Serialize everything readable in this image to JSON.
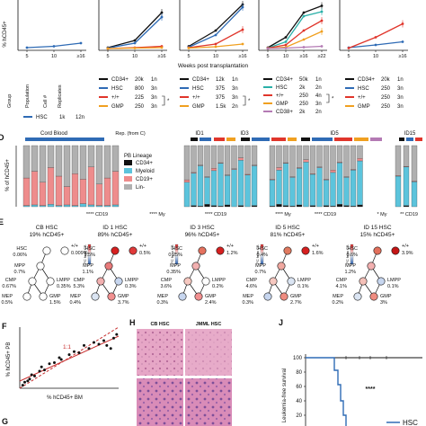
{
  "colors": {
    "black": "#111111",
    "blue": "#2f6bb5",
    "red": "#e0352b",
    "orange": "#f0a020",
    "teal": "#2ab0a8",
    "cyan": "#5cc4dc",
    "grey": "#b0b0b0",
    "pink": "#ee8c8c",
    "green": "#3aa13a",
    "mauve": "#b47ab4",
    "tree_gradient_top": "#d62020",
    "tree_gradient_mid": "#ffffff",
    "tree_gradient_bottom": "#2a5fb0"
  },
  "panel_a": {
    "ylabel": "% hCD45+",
    "xlabel": "Weeks post transplantation",
    "panels": [
      {
        "ticks": [
          "5",
          "10",
          "≥16"
        ]
      },
      {
        "ticks": [
          "5",
          "10",
          "≥16"
        ]
      },
      {
        "ticks": [
          "5",
          "10",
          "≥16"
        ]
      },
      {
        "ticks": [
          "5",
          "10",
          "≥16",
          "≥22"
        ]
      },
      {
        "ticks": [
          "5",
          "10",
          "≥16"
        ]
      }
    ]
  },
  "chart_data": {
    "type": "line",
    "title": "",
    "xlabel": "Weeks post transplantation",
    "ylabel": "% hCD45+",
    "panels": [
      {
        "x": [
          "5",
          "10",
          "≥16"
        ],
        "series": [
          {
            "color": "blue",
            "values": [
              2,
              5,
              12
            ]
          }
        ]
      },
      {
        "x": [
          "5",
          "10",
          "≥16"
        ],
        "series": [
          {
            "color": "black",
            "values": [
              2,
              18,
              80
            ]
          },
          {
            "color": "blue",
            "values": [
              1,
              12,
              70
            ]
          },
          {
            "color": "red",
            "values": [
              0,
              2,
              5
            ]
          },
          {
            "color": "orange",
            "values": [
              0,
              1,
              2
            ]
          }
        ]
      },
      {
        "x": [
          "5",
          "10",
          "≥16"
        ],
        "series": [
          {
            "color": "black",
            "values": [
              5,
              40,
              98
            ]
          },
          {
            "color": "blue",
            "values": [
              3,
              30,
              92
            ]
          },
          {
            "color": "red",
            "values": [
              2,
              10,
              42
            ]
          },
          {
            "color": "orange",
            "values": [
              1,
              4,
              10
            ]
          }
        ]
      },
      {
        "x": [
          "5",
          "10",
          "≥16",
          "≥22"
        ],
        "series": [
          {
            "color": "black",
            "values": [
              2,
              25,
              80,
              95
            ]
          },
          {
            "color": "teal",
            "values": [
              1,
              15,
              72,
              82
            ]
          },
          {
            "color": "red",
            "values": [
              1,
              8,
              40,
              62
            ]
          },
          {
            "color": "orange",
            "values": [
              0,
              3,
              20,
              38
            ]
          },
          {
            "color": "mauve",
            "values": [
              0,
              1,
              3,
              5
            ]
          }
        ]
      },
      {
        "x": [
          "5",
          "10",
          "≥16"
        ],
        "series": [
          {
            "color": "blue",
            "values": [
              2,
              8,
              15
            ]
          },
          {
            "color": "red",
            "values": [
              1,
              25,
              55
            ]
          }
        ]
      }
    ]
  },
  "panel_b": {
    "headers": [
      "Group",
      "Population",
      "Cell #",
      "Replicates"
    ],
    "tables": [
      {
        "rows": [
          {
            "color": "blue",
            "name": "HSC",
            "cells": "1k",
            "reps": "12n"
          }
        ]
      },
      {
        "rows": [
          {
            "color": "black",
            "name": "CD34+",
            "cells": "20k",
            "reps": "1n"
          },
          {
            "color": "blue",
            "name": "HSC",
            "cells": "800",
            "reps": "3n"
          },
          {
            "color": "red",
            "name": "+/+",
            "cells": "225",
            "reps": "3n"
          },
          {
            "color": "orange",
            "name": "GMP",
            "cells": "250",
            "reps": "3n"
          }
        ]
      },
      {
        "rows": [
          {
            "color": "black",
            "name": "CD34+",
            "cells": "12k",
            "reps": "1n"
          },
          {
            "color": "blue",
            "name": "HSC",
            "cells": "375",
            "reps": "3n"
          },
          {
            "color": "red",
            "name": "+/+",
            "cells": "375",
            "reps": "3n"
          },
          {
            "color": "orange",
            "name": "GMP",
            "cells": "1.5k",
            "reps": "2n"
          }
        ]
      },
      {
        "rows": [
          {
            "color": "black",
            "name": "CD34+",
            "cells": "50k",
            "reps": "1n"
          },
          {
            "color": "teal",
            "name": "HSC",
            "cells": "2k",
            "reps": "2n"
          },
          {
            "color": "red",
            "name": "+/+",
            "cells": "250",
            "reps": "4n"
          },
          {
            "color": "orange",
            "name": "GMP",
            "cells": "250",
            "reps": "3n"
          },
          {
            "color": "mauve",
            "name": "CD38+",
            "cells": "2k",
            "reps": "2n"
          }
        ]
      },
      {
        "rows": [
          {
            "color": "black",
            "name": "CD34+",
            "cells": "20k",
            "reps": "1n"
          },
          {
            "color": "blue",
            "name": "HSC",
            "cells": "250",
            "reps": "3n"
          },
          {
            "color": "red",
            "name": "+/+",
            "cells": "250",
            "reps": "3n"
          },
          {
            "color": "orange",
            "name": "GMP",
            "cells": "250",
            "reps": "3n"
          }
        ]
      }
    ],
    "star": "*"
  },
  "panel_d": {
    "letter": "D",
    "ylabel": "% of hCD45+",
    "group_labels": [
      "Cord Blood",
      "ID1",
      "ID3",
      "ID5",
      "ID15"
    ],
    "rep_label": "Rep. (from C)",
    "legend_title": "PB Lineage",
    "legend": [
      {
        "label": "CD34+",
        "color": "black"
      },
      {
        "label": "Myeloid",
        "color": "cyan"
      },
      {
        "label": "CD19+",
        "color": "pink"
      },
      {
        "label": "Lin-",
        "color": "grey"
      }
    ],
    "bottom_labels": [
      "**** CD19",
      "**** My",
      "**** CD19",
      "**** My",
      "**** CD19",
      "* My",
      "** CD19"
    ]
  },
  "panel_e": {
    "letter": "E",
    "fc_label": "FC from CB",
    "trees": [
      {
        "title": "CB HSC",
        "pct": "19% hCD45+",
        "hsc": "0.06%",
        "pp": "0.009%",
        "mpp": "0.7%",
        "cmp": "0.67%",
        "lmpp": "0.35%",
        "mep": "0.5%",
        "gmp": "1.5%"
      },
      {
        "title": "ID 1 HSC",
        "pct": "89% hCD45+",
        "hsc": "1.5%",
        "pp": "0.5%",
        "mpp": "1.1%",
        "cmp": "5.3%",
        "lmpp": "0.3%",
        "mep": "0.4%",
        "gmp": "3.7%"
      },
      {
        "title": "ID 3 HSC",
        "pct": "96% hCD45+",
        "hsc": "0.25%",
        "pp": "1.2%",
        "mpp": "0.35%",
        "cmp": "3.6%",
        "lmpp": "0.2%",
        "mep": "0.3%",
        "gmp": "2.4%"
      },
      {
        "title": "ID 5 HSC",
        "pct": "81% hCD45+",
        "hsc": "0.4%",
        "pp": "1.6%",
        "mpp": "0.7%",
        "cmp": "4.6%",
        "lmpp": "0.1%",
        "mep": "0.3%",
        "gmp": "2.7%"
      },
      {
        "title": "ID 15 HSC",
        "pct": "15% hCD45+",
        "hsc": "0.6%",
        "pp": "3.9%",
        "mpp": "1.2%",
        "cmp": "4.1%",
        "lmpp": "0.1%",
        "mep": "0.2%",
        "gmp": "3%"
      }
    ],
    "node_names": [
      "HSC",
      "MPP",
      "CMP",
      "LMPP",
      "MEP",
      "GMP",
      "+/+"
    ]
  },
  "panel_f": {
    "letter": "F",
    "ylabel": "% hCD45+ PB",
    "xlabel": "% hCD45+ BM",
    "unity_label": "1:1",
    "points": [
      [
        3,
        5
      ],
      [
        5,
        10
      ],
      [
        8,
        12
      ],
      [
        10,
        15
      ],
      [
        12,
        22
      ],
      [
        15,
        20
      ],
      [
        20,
        28
      ],
      [
        22,
        35
      ],
      [
        25,
        30
      ],
      [
        30,
        40
      ],
      [
        35,
        42
      ],
      [
        40,
        50
      ],
      [
        42,
        47
      ],
      [
        50,
        55
      ],
      [
        55,
        60
      ],
      [
        60,
        58
      ],
      [
        65,
        70
      ],
      [
        70,
        65
      ],
      [
        75,
        75
      ],
      [
        80,
        72
      ],
      [
        85,
        78
      ],
      [
        88,
        70
      ],
      [
        92,
        65
      ],
      [
        95,
        82
      ],
      [
        98,
        88
      ]
    ]
  },
  "panel_h": {
    "letter": "H",
    "labels": [
      "CB HSC",
      "JMML HSC"
    ]
  },
  "panel_j": {
    "letter": "J",
    "ylabel": "Leukemia-free survival",
    "yticks": [
      "100",
      "80",
      "60",
      "40",
      "20"
    ],
    "stars": "****",
    "legend": "HSC"
  },
  "panel_g": {
    "letter": "G"
  }
}
